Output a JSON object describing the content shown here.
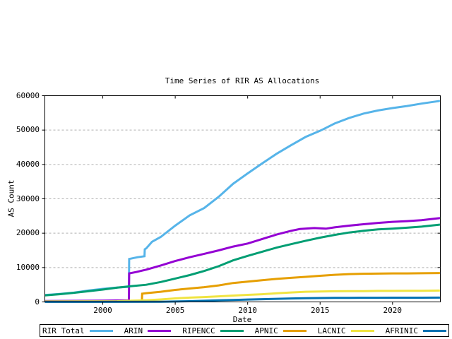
{
  "chart_data": {
    "type": "line",
    "title": "Time Series of RIR AS Allocations",
    "xlabel": "Date",
    "ylabel": "AS Count",
    "x_domain": [
      1996.0,
      2023.3
    ],
    "y_domain": [
      0,
      60000
    ],
    "x_ticks": [
      2000,
      2005,
      2010,
      2015,
      2020
    ],
    "y_ticks": [
      0,
      10000,
      20000,
      30000,
      40000,
      50000,
      60000
    ],
    "grid": {
      "horizontal_dashed_at": [
        10000,
        20000,
        30000,
        40000,
        50000
      ],
      "color": "#b0b0b0",
      "vertical": false
    },
    "legend_position": "bottom",
    "line_width": 3,
    "series": [
      {
        "name": "RIR Total",
        "color": "#56b4e9",
        "points": [
          [
            1996,
            2000
          ],
          [
            1997,
            2300
          ],
          [
            1998,
            2700
          ],
          [
            1999,
            3300
          ],
          [
            2000,
            3800
          ],
          [
            2001,
            4200
          ],
          [
            2001.8,
            4400
          ],
          [
            2001.82,
            12500
          ],
          [
            2002.4,
            13000
          ],
          [
            2002.88,
            13300
          ],
          [
            2002.9,
            15300
          ],
          [
            2003,
            15600
          ],
          [
            2003.4,
            17500
          ],
          [
            2004,
            18900
          ],
          [
            2005,
            22200
          ],
          [
            2006,
            25200
          ],
          [
            2007,
            27300
          ],
          [
            2008,
            30600
          ],
          [
            2009,
            34400
          ],
          [
            2010,
            37400
          ],
          [
            2011,
            40300
          ],
          [
            2012,
            43100
          ],
          [
            2013,
            45600
          ],
          [
            2014,
            48000
          ],
          [
            2015,
            49800
          ],
          [
            2015.2,
            50200
          ],
          [
            2016,
            51900
          ],
          [
            2017,
            53500
          ],
          [
            2018,
            54800
          ],
          [
            2019,
            55700
          ],
          [
            2020,
            56400
          ],
          [
            2021,
            57000
          ],
          [
            2022,
            57700
          ],
          [
            2023.3,
            58500
          ]
        ]
      },
      {
        "name": "ARIN",
        "color": "#9400d3",
        "points": [
          [
            1996,
            250
          ],
          [
            2000,
            350
          ],
          [
            2001.8,
            450
          ],
          [
            2001.82,
            8300
          ],
          [
            2002.3,
            8700
          ],
          [
            2003,
            9400
          ],
          [
            2004,
            10600
          ],
          [
            2005,
            11900
          ],
          [
            2006,
            13000
          ],
          [
            2007,
            14000
          ],
          [
            2008,
            15000
          ],
          [
            2009,
            16100
          ],
          [
            2010,
            17000
          ],
          [
            2011,
            18300
          ],
          [
            2012,
            19600
          ],
          [
            2013,
            20700
          ],
          [
            2013.6,
            21200
          ],
          [
            2014.6,
            21500
          ],
          [
            2015.4,
            21300
          ],
          [
            2016,
            21700
          ],
          [
            2017,
            22200
          ],
          [
            2018,
            22600
          ],
          [
            2019,
            23000
          ],
          [
            2020,
            23300
          ],
          [
            2021,
            23500
          ],
          [
            2022,
            23800
          ],
          [
            2023.3,
            24400
          ]
        ]
      },
      {
        "name": "RIPENCC",
        "color": "#009e73",
        "points": [
          [
            1996,
            1900
          ],
          [
            1997,
            2250
          ],
          [
            1998,
            2650
          ],
          [
            1999,
            3100
          ],
          [
            2000,
            3600
          ],
          [
            2001,
            4150
          ],
          [
            2002,
            4600
          ],
          [
            2003,
            5000
          ],
          [
            2004,
            5800
          ],
          [
            2005,
            6800
          ],
          [
            2006,
            7800
          ],
          [
            2007,
            9000
          ],
          [
            2008,
            10400
          ],
          [
            2009,
            12100
          ],
          [
            2010,
            13400
          ],
          [
            2011,
            14600
          ],
          [
            2012,
            15800
          ],
          [
            2013,
            16800
          ],
          [
            2014,
            17800
          ],
          [
            2015,
            18700
          ],
          [
            2016,
            19500
          ],
          [
            2017,
            20200
          ],
          [
            2018,
            20700
          ],
          [
            2019,
            21100
          ],
          [
            2020,
            21300
          ],
          [
            2021,
            21600
          ],
          [
            2022,
            21900
          ],
          [
            2023.3,
            22500
          ]
        ]
      },
      {
        "name": "APNIC",
        "color": "#e69f00",
        "points": [
          [
            2002.7,
            100
          ],
          [
            2002.72,
            2400
          ],
          [
            2003,
            2550
          ],
          [
            2004,
            2950
          ],
          [
            2005,
            3500
          ],
          [
            2006,
            3900
          ],
          [
            2007,
            4300
          ],
          [
            2008,
            4800
          ],
          [
            2009,
            5500
          ],
          [
            2010,
            5900
          ],
          [
            2011,
            6300
          ],
          [
            2012,
            6700
          ],
          [
            2013,
            7000
          ],
          [
            2014,
            7300
          ],
          [
            2015,
            7600
          ],
          [
            2016,
            7900
          ],
          [
            2017,
            8100
          ],
          [
            2018,
            8200
          ],
          [
            2019,
            8250
          ],
          [
            2020,
            8300
          ],
          [
            2021,
            8300
          ],
          [
            2022,
            8350
          ],
          [
            2023.3,
            8400
          ]
        ]
      },
      {
        "name": "LACNIC",
        "color": "#f0e442",
        "points": [
          [
            1996,
            150
          ],
          [
            2001,
            200
          ],
          [
            2002,
            350
          ],
          [
            2003,
            500
          ],
          [
            2004,
            720
          ],
          [
            2005,
            1020
          ],
          [
            2006,
            1250
          ],
          [
            2007,
            1420
          ],
          [
            2008,
            1620
          ],
          [
            2009,
            1850
          ],
          [
            2010,
            2050
          ],
          [
            2011,
            2250
          ],
          [
            2012,
            2500
          ],
          [
            2013,
            2750
          ],
          [
            2014,
            2950
          ],
          [
            2015,
            3050
          ],
          [
            2016,
            3100
          ],
          [
            2017,
            3150
          ],
          [
            2018,
            3150
          ],
          [
            2019,
            3200
          ],
          [
            2020,
            3200
          ],
          [
            2021,
            3250
          ],
          [
            2022,
            3250
          ],
          [
            2023.3,
            3300
          ]
        ]
      },
      {
        "name": "AFRINIC",
        "color": "#0072b2",
        "points": [
          [
            1996,
            20
          ],
          [
            2004,
            60
          ],
          [
            2005,
            120
          ],
          [
            2006,
            200
          ],
          [
            2007,
            320
          ],
          [
            2008,
            450
          ],
          [
            2009,
            580
          ],
          [
            2010,
            700
          ],
          [
            2011,
            800
          ],
          [
            2012,
            900
          ],
          [
            2013,
            1000
          ],
          [
            2014,
            1080
          ],
          [
            2015,
            1140
          ],
          [
            2016,
            1180
          ],
          [
            2017,
            1200
          ],
          [
            2018,
            1210
          ],
          [
            2019,
            1220
          ],
          [
            2020,
            1230
          ],
          [
            2021,
            1240
          ],
          [
            2022,
            1240
          ],
          [
            2023.3,
            1250
          ]
        ]
      }
    ]
  }
}
